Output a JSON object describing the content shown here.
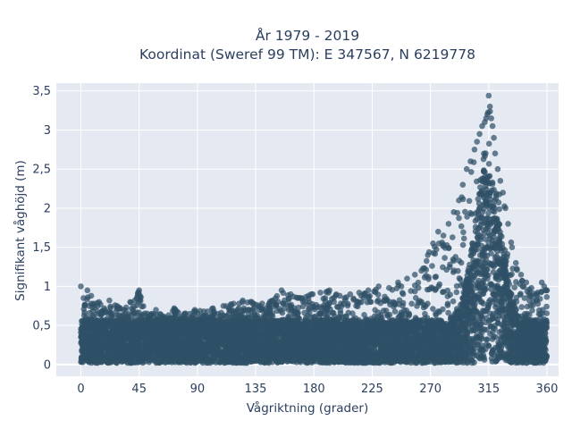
{
  "chart_data": {
    "type": "scatter",
    "title": "År 1979 - 2019",
    "subtitle": "Koordinat (Sweref 99 TM): E 347567, N 6219778",
    "xlabel": "Vågriktning (grader)",
    "ylabel": "Signifikant våghöjd (m)",
    "xlim": [
      -19,
      369
    ],
    "ylim": [
      -0.15,
      3.6
    ],
    "xticks": [
      0,
      45,
      90,
      135,
      180,
      225,
      270,
      315,
      360
    ],
    "yticks": [
      0,
      0.5,
      1,
      1.5,
      2,
      2.5,
      3,
      3.5
    ],
    "xtick_labels": [
      "0",
      "45",
      "90",
      "135",
      "180",
      "225",
      "270",
      "315",
      "360"
    ],
    "ytick_labels": [
      "0",
      "0,5",
      "1",
      "1,5",
      "2",
      "2,5",
      "3",
      "3,5"
    ],
    "grid": true,
    "marker_color": "#2f5066",
    "background_color": "#e5e9f2",
    "series": [
      {
        "x": [
          0,
          2,
          5,
          8,
          10,
          14,
          18,
          22,
          28,
          33,
          38,
          45,
          52,
          58,
          65,
          72,
          80,
          88,
          95,
          102,
          110,
          118,
          125,
          132,
          140,
          148,
          155,
          162,
          170,
          178,
          185,
          192,
          200,
          208,
          215,
          222,
          230,
          238,
          245,
          252,
          258,
          263,
          268,
          272,
          276,
          280,
          284,
          288,
          292,
          295,
          298,
          301,
          304,
          306,
          308,
          310,
          312,
          313,
          314,
          315,
          316,
          317,
          318,
          319,
          320,
          322,
          324,
          326,
          328,
          330,
          333,
          336,
          340,
          344,
          348,
          352,
          356,
          360
        ],
        "y": [
          1.0,
          0.85,
          0.95,
          0.88,
          0.78,
          0.8,
          0.72,
          0.82,
          0.75,
          0.7,
          0.8,
          0.95,
          0.62,
          0.7,
          0.6,
          0.72,
          0.65,
          0.7,
          0.68,
          0.72,
          0.75,
          0.78,
          0.82,
          0.8,
          0.78,
          0.82,
          0.95,
          0.9,
          0.85,
          0.9,
          0.92,
          0.95,
          0.88,
          0.9,
          0.92,
          0.95,
          1.0,
          0.98,
          1.05,
          1.1,
          1.15,
          1.2,
          1.4,
          1.55,
          1.7,
          1.65,
          1.8,
          1.95,
          2.1,
          2.3,
          2.5,
          2.6,
          2.75,
          2.85,
          2.95,
          3.05,
          3.1,
          3.15,
          3.2,
          3.44,
          3.3,
          3.15,
          3.05,
          2.9,
          2.7,
          2.5,
          2.35,
          2.2,
          2.0,
          1.8,
          1.5,
          1.3,
          1.15,
          1.05,
          0.98,
          0.9,
          1.05,
          0.95
        ]
      }
    ]
  }
}
